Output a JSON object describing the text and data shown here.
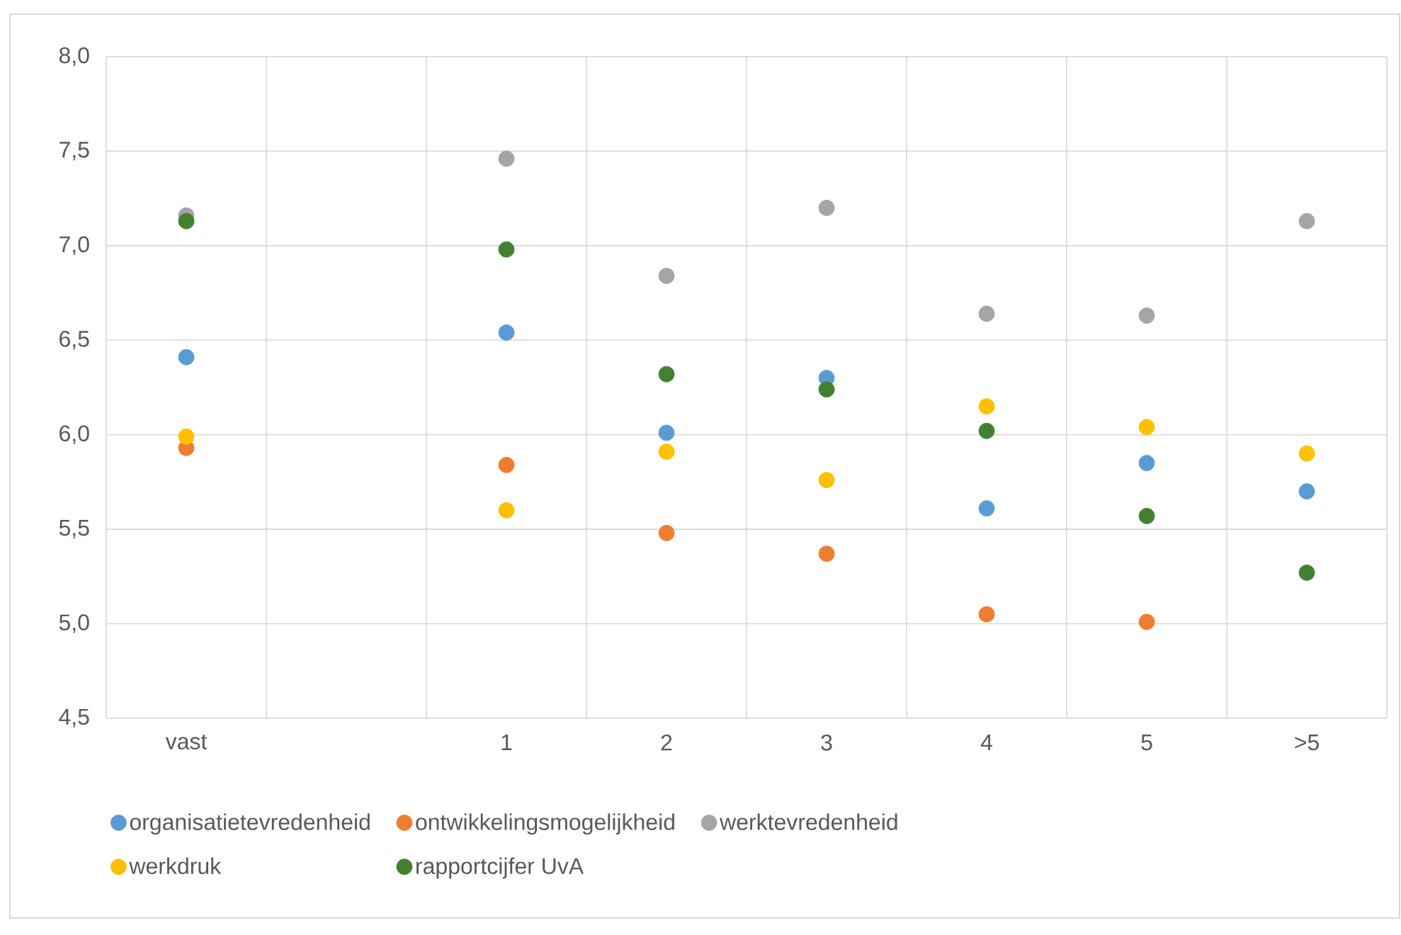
{
  "chart_data": {
    "type": "scatter",
    "categories": [
      "vast",
      null,
      "1",
      "2",
      "3",
      "4",
      "5",
      ">5"
    ],
    "series": [
      {
        "name": "organisatietevredenheid",
        "color": "#5b9bd5",
        "values": [
          6.41,
          null,
          6.54,
          6.01,
          6.3,
          5.61,
          5.85,
          5.7
        ]
      },
      {
        "name": "ontwikkelingsmogelijkheid",
        "color": "#ed7d31",
        "values": [
          5.93,
          null,
          5.84,
          5.48,
          5.37,
          5.05,
          5.01,
          null
        ]
      },
      {
        "name": "werktevredenheid",
        "color": "#a5a5a5",
        "values": [
          7.16,
          null,
          7.46,
          6.84,
          7.2,
          6.64,
          6.63,
          7.13
        ]
      },
      {
        "name": "werkdruk",
        "color": "#ffc000",
        "values": [
          5.99,
          null,
          5.6,
          5.91,
          5.76,
          6.15,
          6.04,
          5.9
        ]
      },
      {
        "name": "rapportcijfer UvA",
        "color": "#43802f",
        "values": [
          7.13,
          null,
          6.98,
          6.32,
          6.24,
          6.02,
          5.57,
          5.27
        ]
      }
    ],
    "ylim": [
      4.5,
      8.0
    ],
    "yticks": [
      {
        "value": 4.5,
        "label": "4,5"
      },
      {
        "value": 5.0,
        "label": "5,0"
      },
      {
        "value": 5.5,
        "label": "5,5"
      },
      {
        "value": 6.0,
        "label": "6,0"
      },
      {
        "value": 6.5,
        "label": "6,5"
      },
      {
        "value": 7.0,
        "label": "7,0"
      },
      {
        "value": 7.5,
        "label": "7,5"
      },
      {
        "value": 8.0,
        "label": "8,0"
      }
    ],
    "grid": true,
    "legend": "bottom",
    "marker": "circle"
  }
}
